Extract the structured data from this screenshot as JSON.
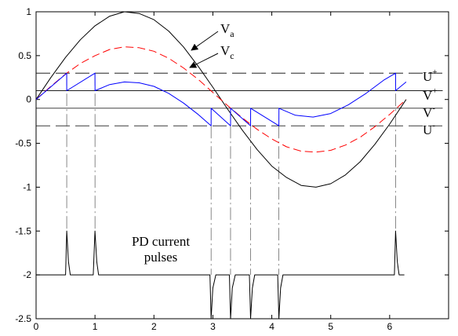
{
  "chart_data": {
    "type": "line",
    "title": "",
    "xlabel": "",
    "ylabel": "",
    "xlim": [
      0,
      7
    ],
    "ylim": [
      -2.5,
      1
    ],
    "x_ticks": [
      "0",
      "1",
      "2",
      "3",
      "4",
      "5",
      "6"
    ],
    "y_ticks": [
      "1",
      "0.5",
      "0",
      "-0.5",
      "-1",
      "-1.5",
      "-2",
      "-2.5"
    ],
    "grid": false,
    "legend": "none",
    "series": [
      {
        "name": "Va",
        "color": "#000000",
        "style": "solid",
        "x": [
          0,
          0.25,
          0.5,
          0.75,
          1.0,
          1.25,
          1.5,
          1.75,
          2.0,
          2.25,
          2.5,
          2.75,
          3.0,
          3.25,
          3.5,
          3.75,
          4.0,
          4.25,
          4.5,
          4.75,
          5.0,
          5.25,
          5.5,
          5.75,
          6.0,
          6.28
        ],
        "y": [
          0,
          0.25,
          0.48,
          0.68,
          0.84,
          0.95,
          1.0,
          0.98,
          0.91,
          0.78,
          0.6,
          0.38,
          0.14,
          -0.11,
          -0.35,
          -0.57,
          -0.76,
          -0.89,
          -0.98,
          -1.0,
          -0.96,
          -0.86,
          -0.71,
          -0.51,
          -0.28,
          0
        ]
      },
      {
        "name": "Vc",
        "color": "#ff0000",
        "style": "dashed",
        "x": [
          0,
          0.25,
          0.5,
          0.75,
          1.0,
          1.25,
          1.5,
          1.75,
          2.0,
          2.25,
          2.5,
          2.75,
          3.0,
          3.25,
          3.5,
          3.75,
          4.0,
          4.25,
          4.5,
          4.75,
          5.0,
          5.25,
          5.5,
          5.75,
          6.0,
          6.28
        ],
        "y": [
          0,
          0.15,
          0.29,
          0.41,
          0.5,
          0.57,
          0.6,
          0.59,
          0.55,
          0.47,
          0.36,
          0.23,
          0.08,
          -0.07,
          -0.21,
          -0.34,
          -0.45,
          -0.54,
          -0.59,
          -0.6,
          -0.58,
          -0.52,
          -0.43,
          -0.31,
          -0.17,
          0
        ]
      },
      {
        "name": "V",
        "color": "#0000ff",
        "style": "solid",
        "x": [
          0,
          0.52,
          0.521,
          1.0,
          1.001,
          1.25,
          1.5,
          1.75,
          2.0,
          2.25,
          2.5,
          2.75,
          2.97,
          2.971,
          3.3,
          3.301,
          3.64,
          3.641,
          4.12,
          4.121,
          4.4,
          4.7,
          5.0,
          5.3,
          5.6,
          5.9,
          6.1,
          6.101,
          6.28
        ],
        "y": [
          0,
          0.3,
          0.1,
          0.3,
          0.1,
          0.17,
          0.2,
          0.19,
          0.15,
          0.07,
          -0.04,
          -0.17,
          -0.3,
          -0.1,
          -0.3,
          -0.1,
          -0.3,
          -0.1,
          -0.3,
          -0.1,
          -0.18,
          -0.2,
          -0.16,
          -0.06,
          0.07,
          0.22,
          0.3,
          0.1,
          0.2
        ]
      },
      {
        "name": "PD current pulses",
        "color": "#000000",
        "style": "solid",
        "x": [
          0,
          0.5,
          0.52,
          0.55,
          0.58,
          0.6,
          0.97,
          1.0,
          1.03,
          1.06,
          1.1,
          2.95,
          2.97,
          3.0,
          3.05,
          3.1,
          3.28,
          3.3,
          3.33,
          3.38,
          3.43,
          3.62,
          3.64,
          3.67,
          3.71,
          3.76,
          4.1,
          4.12,
          4.15,
          4.19,
          4.24,
          6.08,
          6.1,
          6.13,
          6.16,
          6.25
        ],
        "y": [
          -2,
          -2,
          -1.5,
          -1.85,
          -2,
          -2,
          -2,
          -1.5,
          -1.85,
          -2,
          -2,
          -2,
          -2.5,
          -2.15,
          -2.0,
          -2,
          -2,
          -2.5,
          -2.15,
          -2.0,
          -2,
          -2,
          -2.5,
          -2.15,
          -2.0,
          -2,
          -2,
          -2.5,
          -2.15,
          -2.0,
          -2,
          -2,
          -1.5,
          -1.85,
          -2,
          -2
        ]
      }
    ],
    "reference_lines": [
      {
        "label": "U+",
        "y": 0.3,
        "style": "long-dash"
      },
      {
        "label": "V+",
        "y": 0.1,
        "style": "solid"
      },
      {
        "label": "V-",
        "y": -0.1,
        "style": "solid"
      },
      {
        "label": "U-",
        "y": -0.3,
        "style": "long-dash"
      }
    ],
    "vertical_markers": [
      {
        "x": 0.52,
        "y_top": 0.3,
        "y_bottom": -1.5
      },
      {
        "x": 1.0,
        "y_top": 0.3,
        "y_bottom": -1.5
      },
      {
        "x": 2.97,
        "y_top": -0.3,
        "y_bottom": -2.0
      },
      {
        "x": 3.3,
        "y_top": -0.3,
        "y_bottom": -2.0
      },
      {
        "x": 3.64,
        "y_top": -0.3,
        "y_bottom": -2.0
      },
      {
        "x": 4.12,
        "y_top": -0.3,
        "y_bottom": -2.0
      },
      {
        "x": 6.1,
        "y_top": 0.3,
        "y_bottom": -1.5
      }
    ],
    "annotations": {
      "va_label": "V",
      "va_sub": "a",
      "vc_label": "V",
      "vc_sub": "c",
      "u_plus": "U",
      "u_plus_sup": "+",
      "v_plus": "V",
      "v_plus_sup": "+",
      "v_minus": "V",
      "v_minus_sup": "-",
      "u_minus": "U",
      "u_minus_sup": "-",
      "pulses_line1": "PD current",
      "pulses_line2": "pulses"
    }
  }
}
